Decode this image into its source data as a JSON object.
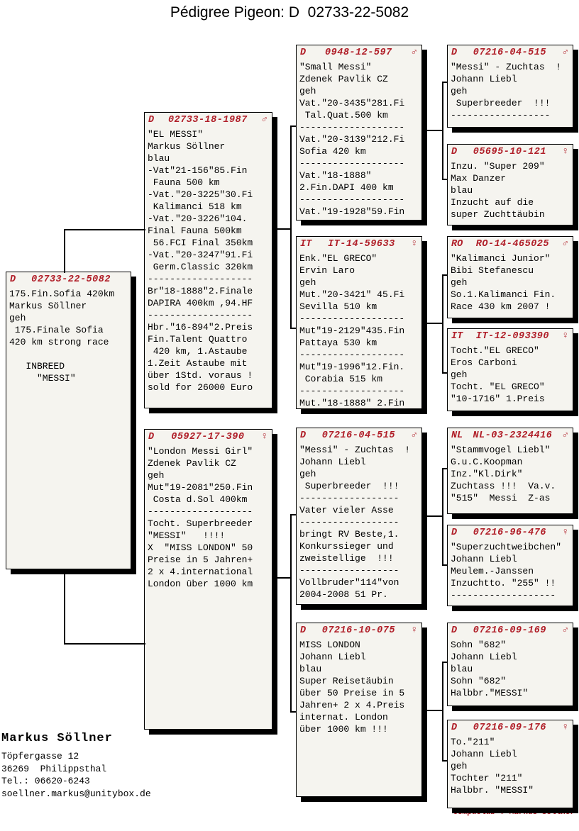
{
  "title": "Pédigree Pigeon: D  02733-22-5082",
  "colors": {
    "header_red": "#b01e28",
    "box_bg": "#f5f4ef",
    "shadow": "#000000",
    "page_bg": "#ffffff"
  },
  "owner": {
    "name": "Markus Söllner",
    "address": [
      "Töpfergasse 12",
      "36269  Philippsthal",
      "Tel.: 06620-6243",
      "soellner.markus@unitybox.de"
    ]
  },
  "credit": "Compuclub © Markus Söllner",
  "boxes": [
    {
      "id": "subject",
      "generation": "subject",
      "country": "D",
      "ring": "02733-22-5082",
      "sex": "",
      "lines": [
        "175.Fin.Sofia 420km",
        "Markus Söllner",
        "geh",
        " 175.Finale Sofia",
        "420 km strong race",
        "",
        "   INBREED",
        "     \"MESSI\""
      ]
    },
    {
      "id": "sire",
      "generation": "parent",
      "country": "D",
      "ring": "02733-18-1987",
      "sex": "♂",
      "lines": [
        "\"EL MESSI\"",
        "Markus Söllner",
        "blau",
        "-Vat\"21-156\"85.Fin",
        " Fauna 500 km",
        "-Vat.\"20-3225\"30.Fi",
        " Kalimanci 518 km",
        "-Vat.\"20-3226\"104.",
        "Final Fauna 500km",
        " 56.FCI Final 350km",
        "-Vat.\"20-3247\"91.Fi",
        " Germ.Classic 320km",
        "-------------------",
        "Br\"18-1888\"2.Finale",
        "DAPIRA 400km ,94.HF",
        "-------------------",
        "Hbr.\"16-894\"2.Preis",
        "Fin.Talent Quattro",
        " 420 km, 1.Astaube",
        "1.Zeit Astaube mit",
        "über 1Std. voraus !",
        "sold for 26000 Euro"
      ]
    },
    {
      "id": "dam",
      "generation": "parent",
      "country": "D",
      "ring": "05927-17-390",
      "sex": "♀",
      "lines": [
        "\"London Messi Girl\"",
        "Zdenek Pavlik CZ",
        "geh",
        "Mut\"19-2081\"250.Fin",
        " Costa d.Sol 400km",
        "-------------------",
        "Tocht. Superbreeder",
        "\"MESSI\"   !!!!",
        "X  \"MISS LONDON\" 50",
        "Preise in 5 Jahren+",
        "2 x 4.international",
        "London über 1000 km"
      ]
    },
    {
      "id": "gp1",
      "generation": "grandparent",
      "country": "D",
      "ring": "0948-12-597",
      "sex": "♂",
      "lines": [
        "\"Small Messi\"",
        "Zdenek Pavlik CZ",
        "geh",
        "Vat.\"20-3435\"281.Fi",
        " Tal.Quat.500 km",
        "-------------------",
        "Vat.\"20-3139\"212.Fi",
        "Sofia 420 km",
        "-------------------",
        "Vat.\"18-1888\"",
        "2.Fin.DAPI 400 km",
        "-------------------",
        "Vat.\"19-1928\"59.Fin"
      ]
    },
    {
      "id": "gp2",
      "generation": "grandparent",
      "country": "IT",
      "ring": "IT-14-59633",
      "sex": "♀",
      "lines": [
        "Enk.\"EL GRECO\"",
        "Ervin Laro",
        "geh",
        "Mut.\"20-3421\" 45.Fi",
        "Sevilla 510 km",
        "-------------------",
        "Mut\"19-2129\"435.Fin",
        "Pattaya 530 km",
        "-------------------",
        "Mut\"19-1996\"12.Fin.",
        " Corabia 515 km",
        "-------------------",
        "Mut.\"18-1888\" 2.Fin"
      ]
    },
    {
      "id": "gp3",
      "generation": "grandparent",
      "country": "D",
      "ring": "07216-04-515",
      "sex": "♂",
      "lines": [
        "\"Messi\" - Zuchtas  !",
        "Johann Liebl",
        "geh",
        " Superbreeder  !!!",
        "------------------",
        "Vater vieler Asse",
        "------------------",
        "bringt RV Beste,1.",
        "Konkurssieger und",
        "zweistellige  !!!",
        "------------------",
        "Vollbruder\"114\"von",
        "2004-2008 51 Pr."
      ]
    },
    {
      "id": "gp4",
      "generation": "grandparent",
      "country": "D",
      "ring": "07216-10-075",
      "sex": "♀",
      "lines": [
        "MISS LONDON",
        "Johann Liebl",
        "blau",
        "Super Reisetäubin",
        "über 50 Preise in 5",
        "Jahren+ 2 x 4.Preis",
        "internat. London",
        "über 1000 km !!!"
      ]
    },
    {
      "id": "gg1",
      "generation": "great-grandparent",
      "country": "D",
      "ring": "07216-04-515",
      "sex": "♂",
      "lines": [
        "\"Messi\" - Zuchtas  !",
        "Johann Liebl",
        "geh",
        " Superbreeder  !!!",
        "------------------"
      ]
    },
    {
      "id": "gg2",
      "generation": "great-grandparent",
      "country": "D",
      "ring": "05695-10-121",
      "sex": "♀",
      "lines": [
        "Inzu. \"Super 209\"",
        "Max Danzer",
        "blau",
        "Inzucht auf die",
        "super Zuchttäubin"
      ]
    },
    {
      "id": "gg3",
      "generation": "great-grandparent",
      "country": "RO",
      "ring": "RO-14-465025",
      "sex": "♂",
      "lines": [
        "\"Kalimanci Junior\"",
        "Bibi Stefanescu",
        "geh",
        "So.1.Kalimanci Fin.",
        "Race 430 km 2007 !"
      ]
    },
    {
      "id": "gg4",
      "generation": "great-grandparent",
      "country": "IT",
      "ring": "IT-12-093390",
      "sex": "♀",
      "lines": [
        "Tocht.\"EL GRECO\"",
        "Eros Carboni",
        "geh",
        "Tocht. \"EL GRECO\"",
        "\"10-1716\" 1.Preis"
      ]
    },
    {
      "id": "gg5",
      "generation": "great-grandparent",
      "country": "NL",
      "ring": "NL-03-2324416",
      "sex": "♂",
      "lines": [
        "\"Stammvogel Liebl\"",
        "G.u.C.Koopman",
        "Inz.\"Kl.Dirk\"",
        "Zuchtass !!!  Va.v.",
        "\"515\"  Messi  Z-as"
      ]
    },
    {
      "id": "gg6",
      "generation": "great-grandparent",
      "country": "D",
      "ring": "07216-96-476",
      "sex": "♀",
      "lines": [
        "\"Superzuchtweibchen\"",
        "Johann Liebl",
        "Meulem.-Janssen",
        "Inzuchtto. \"255\" !!",
        "-------------------"
      ]
    },
    {
      "id": "gg7",
      "generation": "great-grandparent",
      "country": "D",
      "ring": "07216-09-169",
      "sex": "♂",
      "lines": [
        "Sohn \"682\"",
        "Johann Liebl",
        "blau",
        "Sohn \"682\"",
        "Halbbr.\"MESSI\""
      ]
    },
    {
      "id": "gg8",
      "generation": "great-grandparent",
      "country": "D",
      "ring": "07216-09-176",
      "sex": "♀",
      "lines": [
        "To.\"211\"",
        "Johann Liebl",
        "geh",
        "Tochter \"211\"",
        "Halbbr. \"MESSI\""
      ]
    }
  ]
}
